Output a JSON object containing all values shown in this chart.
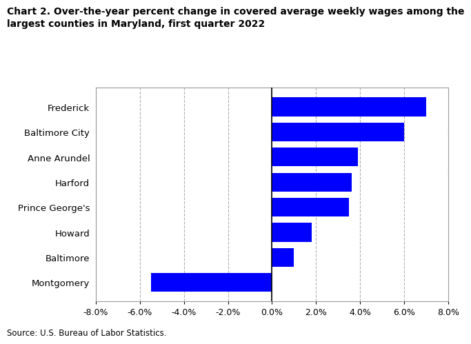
{
  "title_line1": "Chart 2. Over-the-year percent change in covered average weekly wages among the",
  "title_line2": "largest counties in Maryland, first quarter 2022",
  "categories": [
    "Montgomery",
    "Baltimore",
    "Howard",
    "Prince George's",
    "Harford",
    "Anne Arundel",
    "Baltimore City",
    "Frederick"
  ],
  "values": [
    -5.5,
    1.0,
    1.8,
    3.5,
    3.6,
    3.9,
    6.0,
    7.0
  ],
  "bar_color": "#0000FF",
  "xlim": [
    -8.0,
    8.0
  ],
  "xticks": [
    -8.0,
    -6.0,
    -4.0,
    -2.0,
    0.0,
    2.0,
    4.0,
    6.0,
    8.0
  ],
  "source": "Source: U.S. Bureau of Labor Statistics.",
  "background_color": "#ffffff",
  "grid_color": "#b0b0b0",
  "title_fontsize": 10.0,
  "label_fontsize": 9.5,
  "tick_fontsize": 9.0,
  "source_fontsize": 8.5
}
